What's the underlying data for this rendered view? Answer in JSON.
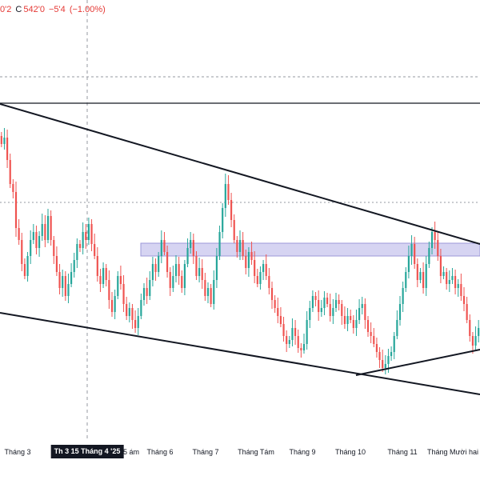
{
  "header": {
    "open_fragment": "0'2",
    "close_label": "C",
    "close_value": "542'0",
    "change": "−5'4",
    "change_pct": "(−1.00%)"
  },
  "colors": {
    "up": "#26a69a",
    "down": "#ef5350",
    "trendline": "#131722",
    "zone_fill": "#d6d4f2",
    "zone_border": "#9c98d8",
    "crosshair": "#9598a1"
  },
  "xaxis": {
    "labels": [
      "Tháng 3",
      "Tháng 5 ám",
      "Tháng 6",
      "Tháng 7",
      "Tháng Tám",
      "Tháng 9",
      "Tháng 10",
      "Tháng 11",
      "Tháng Mười hai"
    ],
    "crosshair_label": "Th 3 15 Tháng 4 '25"
  },
  "drawings": {
    "horizontal_line": "resistance-line",
    "zone": "supply-zone",
    "trendlines": [
      "upper-channel-line",
      "lower-channel-line",
      "rising-support-line"
    ]
  },
  "chart_data": {
    "type": "candlestick",
    "title": "",
    "xlabel": "",
    "ylabel": "",
    "series": [
      {
        "name": "",
        "values": [
          [
            170,
            180
          ],
          [
            180,
            172
          ],
          [
            172,
            200
          ],
          [
            200,
            230
          ],
          [
            230,
            240
          ],
          [
            240,
            285
          ],
          [
            285,
            300
          ],
          [
            300,
            330
          ],
          [
            330,
            345
          ],
          [
            345,
            320
          ],
          [
            320,
            300
          ],
          [
            300,
            290
          ],
          [
            290,
            310
          ],
          [
            310,
            295
          ],
          [
            295,
            280
          ],
          [
            280,
            300
          ],
          [
            300,
            270
          ],
          [
            270,
            300
          ],
          [
            300,
            320
          ],
          [
            320,
            340
          ],
          [
            340,
            360
          ],
          [
            360,
            345
          ],
          [
            345,
            370
          ],
          [
            370,
            355
          ],
          [
            355,
            340
          ],
          [
            340,
            325
          ],
          [
            325,
            305
          ],
          [
            305,
            310
          ],
          [
            310,
            290
          ],
          [
            290,
            300
          ],
          [
            300,
            280
          ],
          [
            280,
            305
          ],
          [
            305,
            320
          ],
          [
            320,
            345
          ],
          [
            345,
            355
          ],
          [
            355,
            335
          ],
          [
            335,
            350
          ],
          [
            350,
            375
          ],
          [
            375,
            390
          ],
          [
            390,
            370
          ],
          [
            370,
            345
          ],
          [
            345,
            355
          ],
          [
            355,
            380
          ],
          [
            380,
            395
          ],
          [
            395,
            385
          ],
          [
            385,
            400
          ],
          [
            400,
            410
          ],
          [
            410,
            395
          ],
          [
            395,
            375
          ],
          [
            375,
            360
          ],
          [
            360,
            370
          ],
          [
            370,
            350
          ],
          [
            350,
            330
          ],
          [
            330,
            340
          ],
          [
            340,
            320
          ],
          [
            320,
            300
          ],
          [
            300,
            315
          ],
          [
            315,
            340
          ],
          [
            340,
            360
          ],
          [
            360,
            345
          ],
          [
            345,
            330
          ],
          [
            330,
            345
          ],
          [
            345,
            360
          ],
          [
            360,
            330
          ],
          [
            330,
            310
          ],
          [
            310,
            300
          ],
          [
            300,
            320
          ],
          [
            320,
            345
          ],
          [
            345,
            335
          ],
          [
            335,
            350
          ],
          [
            350,
            370
          ],
          [
            370,
            360
          ],
          [
            360,
            380
          ],
          [
            380,
            350
          ],
          [
            350,
            320
          ],
          [
            320,
            290
          ],
          [
            290,
            260
          ],
          [
            260,
            230
          ],
          [
            230,
            250
          ],
          [
            250,
            275
          ],
          [
            275,
            300
          ],
          [
            300,
            315
          ],
          [
            315,
            300
          ],
          [
            300,
            320
          ],
          [
            320,
            335
          ],
          [
            335,
            315
          ],
          [
            315,
            325
          ],
          [
            325,
            345
          ],
          [
            345,
            355
          ],
          [
            355,
            340
          ],
          [
            340,
            330
          ],
          [
            330,
            345
          ],
          [
            345,
            360
          ],
          [
            360,
            375
          ],
          [
            375,
            385
          ],
          [
            385,
            395
          ],
          [
            395,
            405
          ],
          [
            405,
            420
          ],
          [
            420,
            430
          ],
          [
            430,
            425
          ],
          [
            425,
            410
          ],
          [
            410,
            420
          ],
          [
            420,
            435
          ],
          [
            435,
            438
          ],
          [
            438,
            430
          ],
          [
            430,
            400
          ],
          [
            400,
            385
          ],
          [
            385,
            370
          ],
          [
            370,
            375
          ],
          [
            375,
            390
          ],
          [
            390,
            385
          ],
          [
            385,
            372
          ],
          [
            372,
            380
          ],
          [
            380,
            395
          ],
          [
            395,
            385
          ],
          [
            385,
            375
          ],
          [
            375,
            380
          ],
          [
            380,
            395
          ],
          [
            395,
            405
          ],
          [
            405,
            395
          ],
          [
            395,
            400
          ],
          [
            400,
            410
          ],
          [
            410,
            400
          ],
          [
            400,
            385
          ],
          [
            385,
            380
          ],
          [
            380,
            400
          ],
          [
            400,
            415
          ],
          [
            415,
            420
          ],
          [
            420,
            430
          ],
          [
            430,
            440
          ],
          [
            440,
            450
          ],
          [
            450,
            460
          ],
          [
            460,
            455
          ],
          [
            455,
            445
          ],
          [
            445,
            440
          ],
          [
            440,
            420
          ],
          [
            420,
            400
          ],
          [
            400,
            380
          ],
          [
            380,
            360
          ],
          [
            360,
            340
          ],
          [
            340,
            320
          ],
          [
            320,
            305
          ],
          [
            305,
            330
          ],
          [
            330,
            350
          ],
          [
            350,
            340
          ],
          [
            340,
            360
          ],
          [
            360,
            330
          ],
          [
            330,
            310
          ],
          [
            310,
            290
          ],
          [
            290,
            300
          ],
          [
            300,
            320
          ],
          [
            320,
            345
          ],
          [
            345,
            340
          ],
          [
            340,
            355
          ],
          [
            355,
            350
          ],
          [
            350,
            345
          ],
          [
            345,
            360
          ],
          [
            360,
            355
          ],
          [
            355,
            370
          ],
          [
            370,
            380
          ],
          [
            380,
            400
          ],
          [
            400,
            420
          ],
          [
            420,
            432
          ],
          [
            432,
            420
          ],
          [
            420,
            410
          ]
        ],
        "note_units": "[open, close] pairs in price-scale units (scale hidden; read off plot)"
      }
    ]
  }
}
